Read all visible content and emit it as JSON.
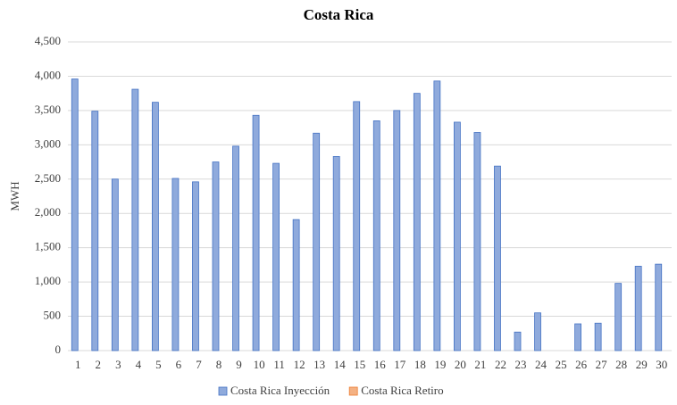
{
  "chart_data": {
    "type": "bar",
    "title": "Costa  Rica",
    "y_label": "MWH",
    "categories": [
      "1",
      "2",
      "3",
      "4",
      "5",
      "6",
      "7",
      "8",
      "9",
      "10",
      "11",
      "12",
      "13",
      "14",
      "15",
      "16",
      "17",
      "18",
      "19",
      "20",
      "21",
      "22",
      "23",
      "24",
      "25",
      "26",
      "27",
      "28",
      "29",
      "30"
    ],
    "series": [
      {
        "name": "Costa Rica Inyección",
        "color": "#8faadc",
        "values": [
          3960,
          3490,
          2500,
          3810,
          3620,
          2510,
          2460,
          2750,
          2980,
          3430,
          2730,
          1910,
          3170,
          2830,
          3630,
          3350,
          3500,
          3750,
          3930,
          3330,
          3180,
          2690,
          270,
          550,
          0,
          390,
          400,
          980,
          1230,
          1260
        ]
      },
      {
        "name": "Costa Rica Retiro",
        "color": "#f4b183",
        "values": [
          0,
          0,
          0,
          0,
          0,
          0,
          0,
          0,
          0,
          0,
          0,
          0,
          0,
          0,
          0,
          0,
          0,
          0,
          0,
          0,
          0,
          0,
          0,
          0,
          0,
          0,
          0,
          0,
          0,
          0
        ]
      }
    ],
    "ylim": [
      0,
      4500
    ],
    "yticks": [
      0,
      500,
      {
        "value": 1000,
        "label": "1,000"
      },
      {
        "value": 1500,
        "label": "1,500"
      },
      {
        "value": 2000,
        "label": "2,000"
      },
      {
        "value": 2500,
        "label": "2,500"
      },
      {
        "value": 3000,
        "label": "3,000"
      },
      {
        "value": 3500,
        "label": "3,500"
      },
      {
        "value": 4000,
        "label": "4,000"
      },
      {
        "value": 4500,
        "label": "4,500"
      }
    ],
    "grid": true
  }
}
